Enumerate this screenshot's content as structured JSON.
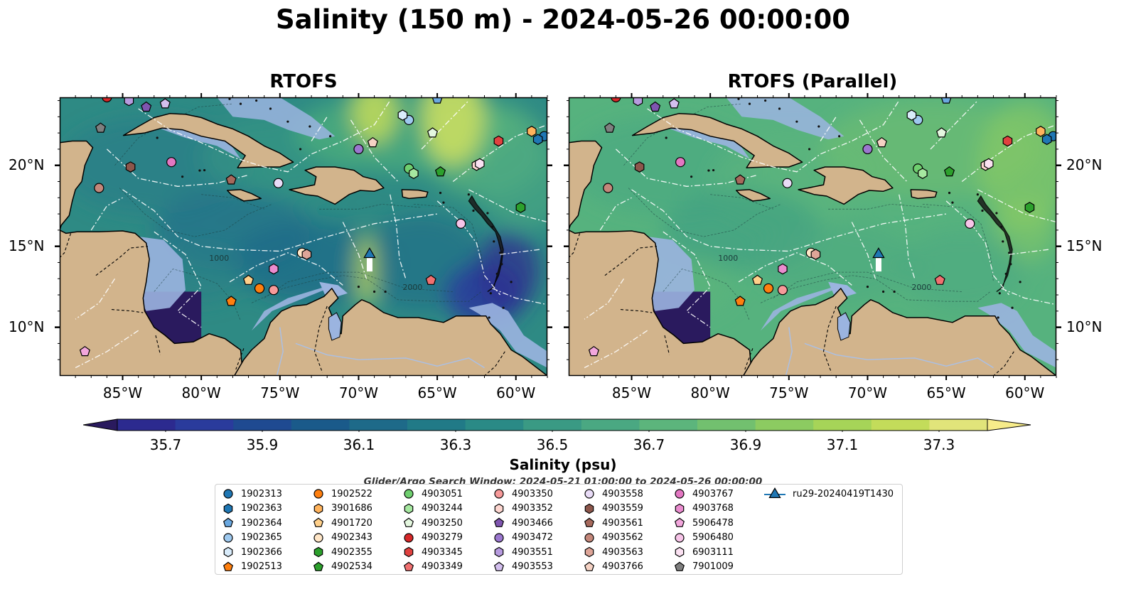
{
  "title": "Salinity (150 m) - 2024-05-26 00:00:00",
  "panels": [
    {
      "title": "RTOFS",
      "variant": "rtofs"
    },
    {
      "title": "RTOFS (Parallel)",
      "variant": "parallel"
    }
  ],
  "axes": {
    "lon_ticks": [
      "85°W",
      "80°W",
      "75°W",
      "70°W",
      "65°W",
      "60°W"
    ],
    "lat_ticks": [
      "20°N",
      "15°N",
      "10°N"
    ],
    "lon_range": [
      -89,
      -58
    ],
    "lat_range": [
      7,
      24.2
    ]
  },
  "map_labels": {
    "rtofs": [
      "1000",
      "2000"
    ],
    "parallel": [
      "1000",
      "2000"
    ]
  },
  "colorbar": {
    "label": "Salinity (psu)",
    "ticks": [
      "35.7",
      "35.9",
      "36.1",
      "36.3",
      "36.5",
      "36.7",
      "36.9",
      "37.1",
      "37.3"
    ],
    "range": [
      35.6,
      37.4
    ],
    "colors": [
      "#2a1a5e",
      "#2c2a8f",
      "#2a3b9c",
      "#1f4a91",
      "#1a5a8a",
      "#1e6a89",
      "#217a87",
      "#2a8a86",
      "#3a9a84",
      "#4aa882",
      "#5cb57c",
      "#72c06f",
      "#8ccb61",
      "#a6d458",
      "#c3dc5a",
      "#e1e47a",
      "#f7ec8a"
    ],
    "extend": "both"
  },
  "colors": {
    "land": "#d2b48c",
    "shelf": "#9bb4e0",
    "deep_ocean": "#2a1a5e",
    "eez_lines": "#ffffff",
    "glider": "#1f77b4"
  },
  "search_window": "Glider/Argo Search Window: 2024-05-21 01:00:00 to 2024-05-26 00:00:00",
  "legend": [
    {
      "id": "1902313",
      "shape": "circle",
      "color": "#1f77b4"
    },
    {
      "id": "1902363",
      "shape": "hexagon",
      "color": "#1f77b4"
    },
    {
      "id": "1902364",
      "shape": "pentagon",
      "color": "#6aa8e0"
    },
    {
      "id": "1902365",
      "shape": "circle",
      "color": "#9ec9ef"
    },
    {
      "id": "1902366",
      "shape": "hexagon",
      "color": "#d9ecfb"
    },
    {
      "id": "1902513",
      "shape": "pentagon",
      "color": "#ff7f0e"
    },
    {
      "id": "1902522",
      "shape": "circle",
      "color": "#ff7f0e"
    },
    {
      "id": "3901686",
      "shape": "hexagon",
      "color": "#ffb35c"
    },
    {
      "id": "4901720",
      "shape": "pentagon",
      "color": "#ffd08a"
    },
    {
      "id": "4902343",
      "shape": "circle",
      "color": "#ffe6c7"
    },
    {
      "id": "4902355",
      "shape": "hexagon",
      "color": "#2ca02c"
    },
    {
      "id": "4902534",
      "shape": "pentagon",
      "color": "#2ca02c"
    },
    {
      "id": "4903051",
      "shape": "circle",
      "color": "#6fcf6f"
    },
    {
      "id": "4903244",
      "shape": "hexagon",
      "color": "#a6e8a0"
    },
    {
      "id": "4903250",
      "shape": "pentagon",
      "color": "#e4f7df"
    },
    {
      "id": "4903279",
      "shape": "circle",
      "color": "#d62728"
    },
    {
      "id": "4903345",
      "shape": "hexagon",
      "color": "#e0413f"
    },
    {
      "id": "4903349",
      "shape": "pentagon",
      "color": "#f07070"
    },
    {
      "id": "4903350",
      "shape": "circle",
      "color": "#f79a9a"
    },
    {
      "id": "4903352",
      "shape": "hexagon",
      "color": "#fdd6d0"
    },
    {
      "id": "4903466",
      "shape": "pentagon",
      "color": "#7f55b0"
    },
    {
      "id": "4903472",
      "shape": "circle",
      "color": "#9b77cf"
    },
    {
      "id": "4903551",
      "shape": "hexagon",
      "color": "#b79bdf"
    },
    {
      "id": "4903553",
      "shape": "pentagon",
      "color": "#d3bfee"
    },
    {
      "id": "4903558",
      "shape": "circle",
      "color": "#e9dcf7"
    },
    {
      "id": "4903559",
      "shape": "hexagon",
      "color": "#8c564b"
    },
    {
      "id": "4903561",
      "shape": "pentagon",
      "color": "#a6695c"
    },
    {
      "id": "4903562",
      "shape": "circle",
      "color": "#c4877a"
    },
    {
      "id": "4903563",
      "shape": "hexagon",
      "color": "#dea598"
    },
    {
      "id": "4903766",
      "shape": "pentagon",
      "color": "#f5d2c4"
    },
    {
      "id": "4903767",
      "shape": "circle",
      "color": "#e377c2"
    },
    {
      "id": "4903768",
      "shape": "hexagon",
      "color": "#ea8ccf"
    },
    {
      "id": "5906478",
      "shape": "pentagon",
      "color": "#f2a6dc"
    },
    {
      "id": "5906480",
      "shape": "circle",
      "color": "#f7c4e8"
    },
    {
      "id": "6903111",
      "shape": "hexagon",
      "color": "#fbe1f2"
    },
    {
      "id": "7901009",
      "shape": "pentagon",
      "color": "#7f7f7f"
    },
    {
      "id": "ru29-20240419T1430",
      "shape": "triangle-line",
      "color": "#1f77b4"
    }
  ],
  "float_positions": [
    {
      "id": "1902313",
      "lon": -58.2,
      "lat": 21.8
    },
    {
      "id": "1902364",
      "lon": -65.0,
      "lat": 24.1
    },
    {
      "id": "1902365",
      "lon": -66.8,
      "lat": 22.8
    },
    {
      "id": "1902366",
      "lon": -67.2,
      "lat": 23.1
    },
    {
      "id": "1902513",
      "lon": -78.1,
      "lat": 11.6
    },
    {
      "id": "1902522",
      "lon": -76.3,
      "lat": 12.4
    },
    {
      "id": "3901686",
      "lon": -59.0,
      "lat": 22.1
    },
    {
      "id": "4901720",
      "lon": -77.0,
      "lat": 12.9
    },
    {
      "id": "4902343",
      "lon": -73.6,
      "lat": 14.6
    },
    {
      "id": "4902355",
      "lon": -59.7,
      "lat": 17.4
    },
    {
      "id": "4902534",
      "lon": -64.8,
      "lat": 19.6
    },
    {
      "id": "4903051",
      "lon": -66.8,
      "lat": 19.8
    },
    {
      "id": "4903345",
      "lon": -61.1,
      "lat": 21.5
    },
    {
      "id": "4903349",
      "lon": -65.4,
      "lat": 12.9
    },
    {
      "id": "4903350",
      "lon": -75.4,
      "lat": 12.3
    },
    {
      "id": "4903352",
      "lon": -62.5,
      "lat": 20.0
    },
    {
      "id": "4903466",
      "lon": -83.5,
      "lat": 23.6
    },
    {
      "id": "4903551",
      "lon": -84.6,
      "lat": 24.0
    },
    {
      "id": "4903553",
      "lon": -82.3,
      "lat": 23.8
    },
    {
      "id": "4903558",
      "lon": -75.1,
      "lat": 18.9
    },
    {
      "id": "4903559",
      "lon": -84.5,
      "lat": 19.9
    },
    {
      "id": "4903561",
      "lon": -78.1,
      "lat": 19.1
    },
    {
      "id": "4903562",
      "lon": -86.5,
      "lat": 18.6
    },
    {
      "id": "4903563",
      "lon": -73.3,
      "lat": 14.5
    },
    {
      "id": "4903766",
      "lon": -69.1,
      "lat": 21.4
    },
    {
      "id": "4903767",
      "lon": -81.9,
      "lat": 20.2
    },
    {
      "id": "4903768",
      "lon": -75.4,
      "lat": 13.6
    },
    {
      "id": "5906478",
      "lon": -87.4,
      "lat": 8.5
    },
    {
      "id": "5906480",
      "lon": -63.5,
      "lat": 16.4
    },
    {
      "id": "6903111",
      "lon": -62.3,
      "lat": 20.1
    },
    {
      "id": "7901009",
      "lon": -86.4,
      "lat": 22.3
    },
    {
      "id": "1902363",
      "lon": -58.6,
      "lat": 21.6
    },
    {
      "id": "4903244",
      "lon": -66.5,
      "lat": 19.5
    },
    {
      "id": "4903250",
      "lon": -65.3,
      "lat": 22.0
    },
    {
      "id": "4903279",
      "lon": -86.0,
      "lat": 24.2
    },
    {
      "id": "4903472",
      "lon": -70.0,
      "lat": 21.0
    }
  ],
  "glider_position": {
    "lon": -69.3,
    "lat": 14.5
  }
}
